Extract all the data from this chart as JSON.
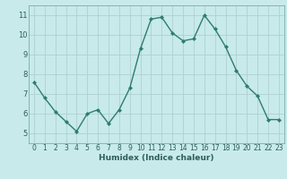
{
  "x": [
    0,
    1,
    2,
    3,
    4,
    5,
    6,
    7,
    8,
    9,
    10,
    11,
    12,
    13,
    14,
    15,
    16,
    17,
    18,
    19,
    20,
    21,
    22,
    23
  ],
  "y": [
    7.6,
    6.8,
    6.1,
    5.6,
    5.1,
    6.0,
    6.2,
    5.5,
    6.2,
    7.3,
    9.3,
    10.8,
    10.9,
    10.1,
    9.7,
    9.8,
    11.0,
    10.3,
    9.4,
    8.2,
    7.4,
    6.9,
    5.7,
    5.7
  ],
  "xlabel": "Humidex (Indice chaleur)",
  "line_color": "#2e7d6e",
  "marker_color": "#2e7d6e",
  "bg_color": "#c8eaea",
  "grid_color": "#b0d0d0",
  "ylim": [
    4.5,
    11.5
  ],
  "xlim": [
    -0.5,
    23.5
  ],
  "yticks": [
    5,
    6,
    7,
    8,
    9,
    10,
    11
  ],
  "xticks": [
    0,
    1,
    2,
    3,
    4,
    5,
    6,
    7,
    8,
    9,
    10,
    11,
    12,
    13,
    14,
    15,
    16,
    17,
    18,
    19,
    20,
    21,
    22,
    23
  ],
  "xlabel_fontsize": 6.5,
  "tick_fontsize": 5.5
}
